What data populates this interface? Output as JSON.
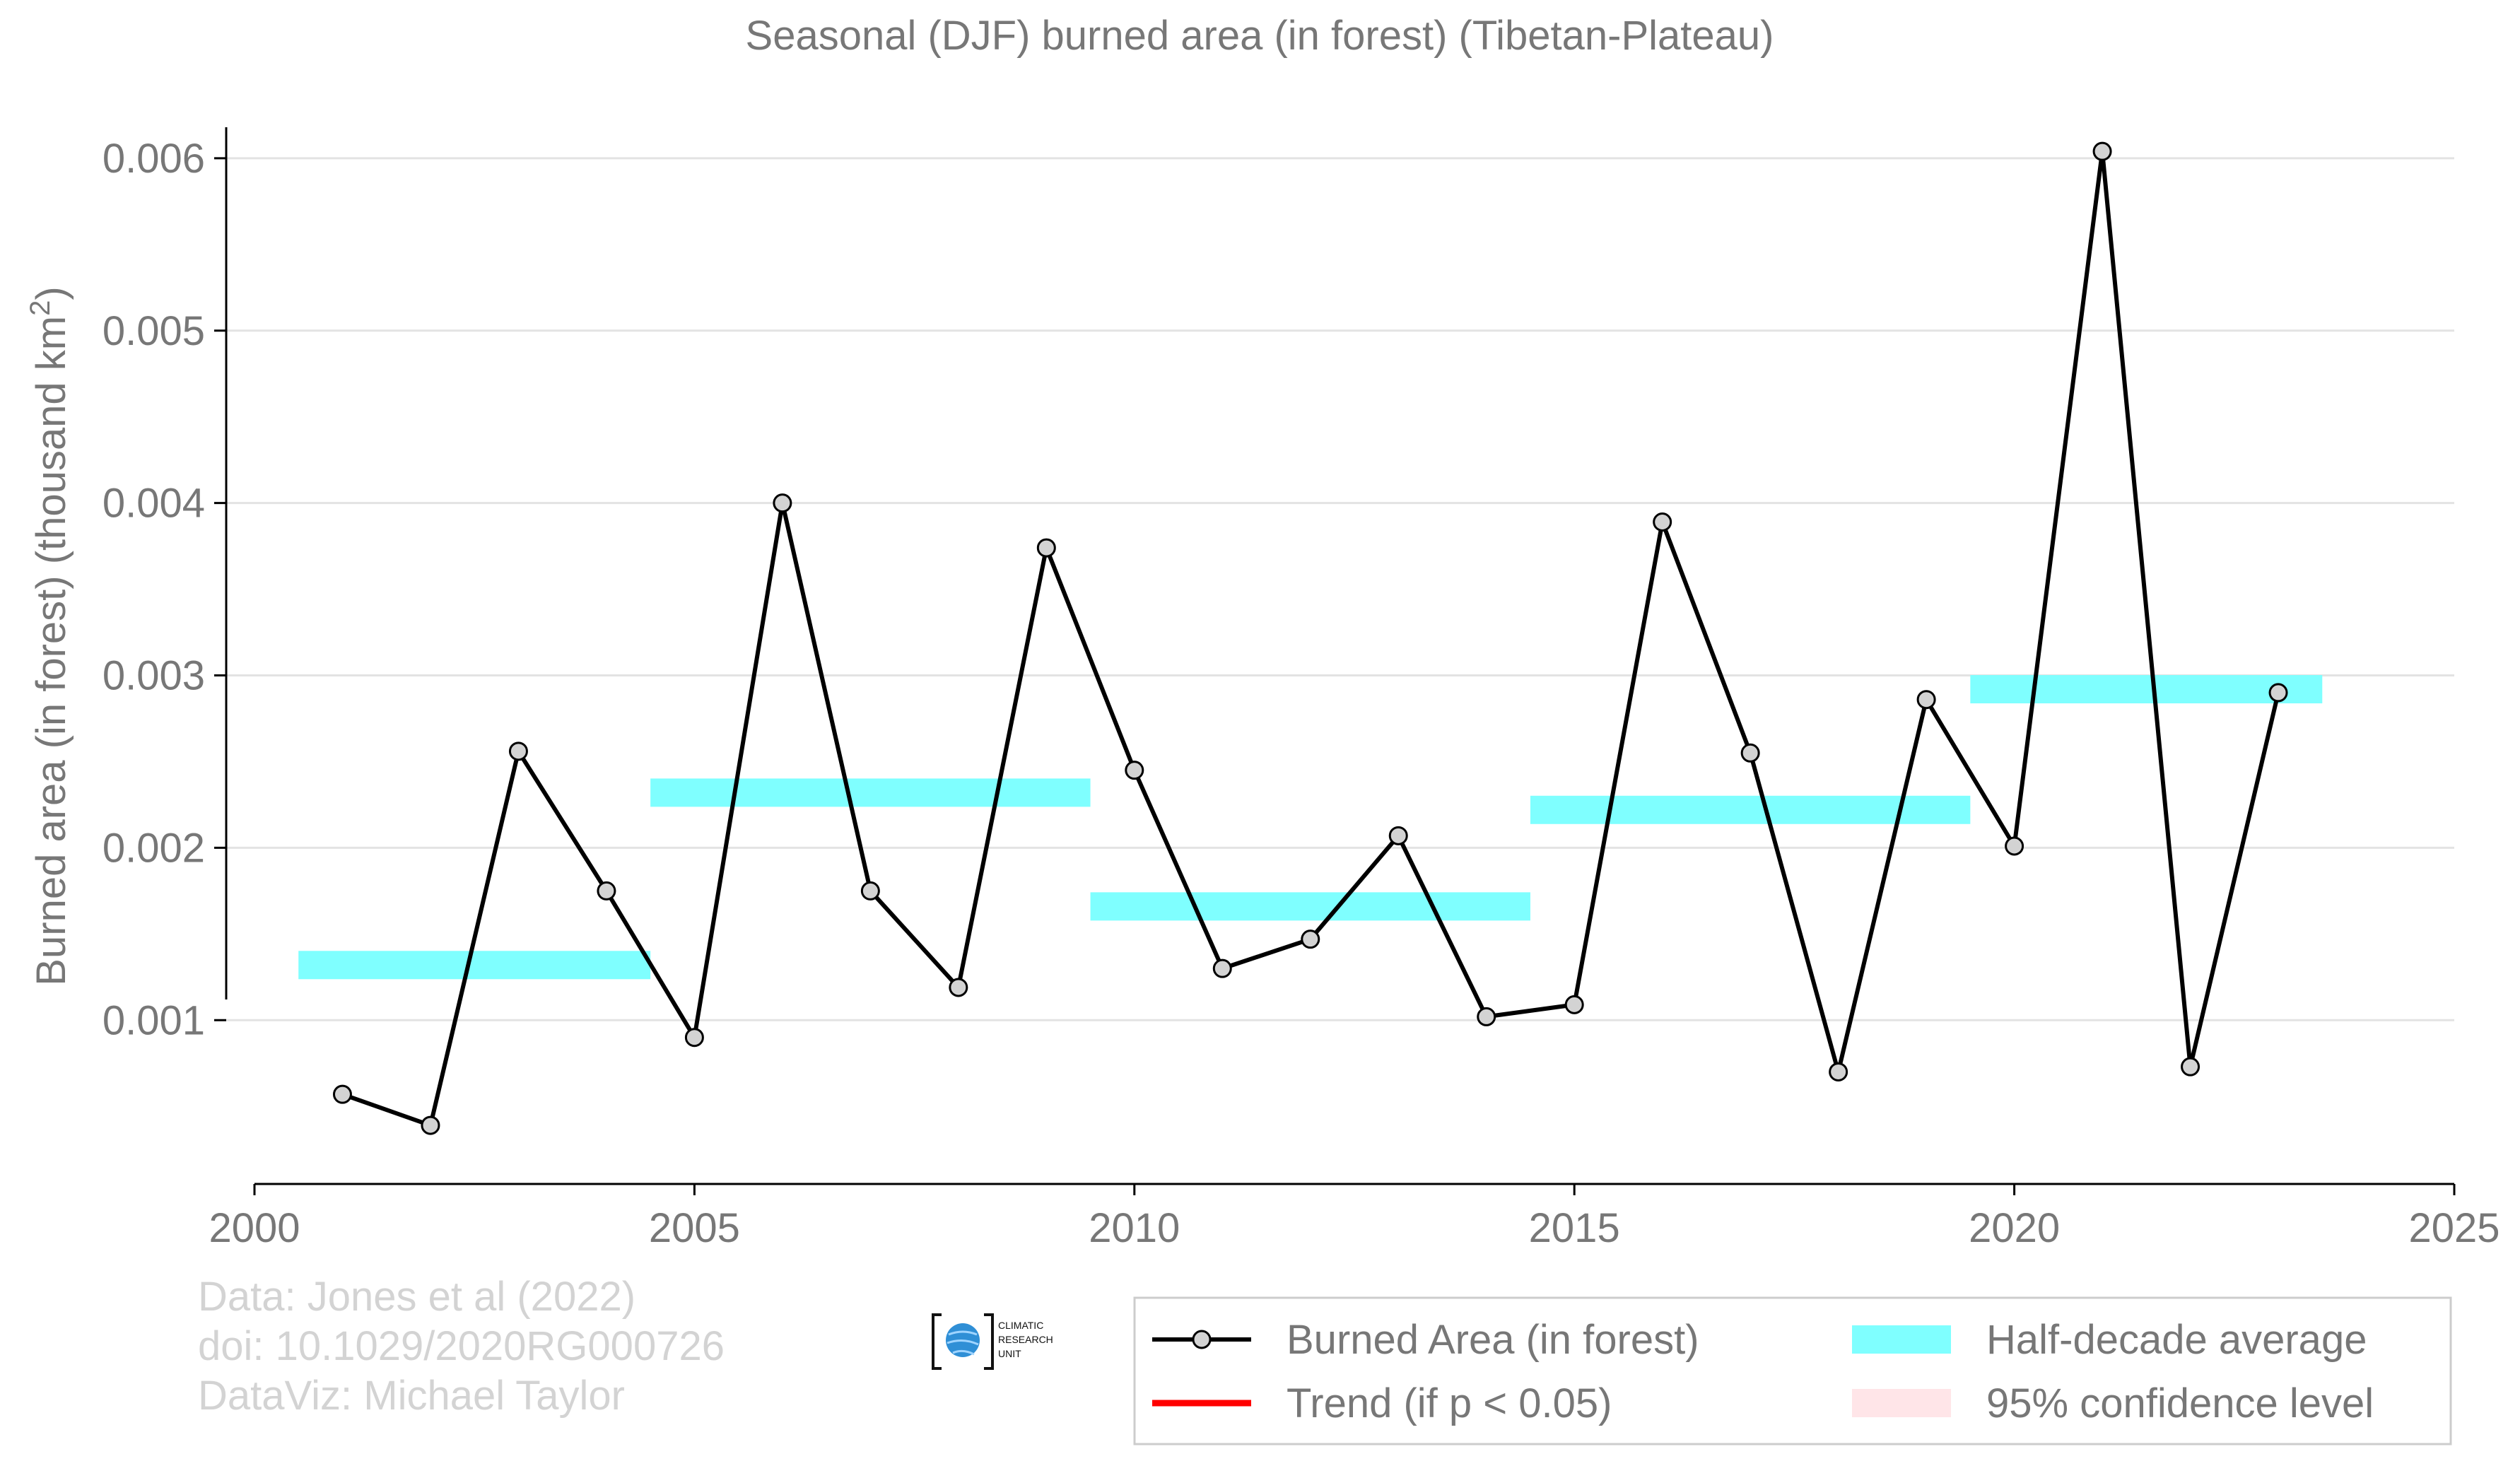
{
  "chart_data": {
    "type": "line",
    "title": "Seasonal (DJF) burned area (in forest) (Tibetan-Plateau)",
    "ylabel": "Burned area (in forest) (thousand km",
    "ylabel_superscript": "2",
    "ylabel_suffix": ")",
    "xlim": [
      2000,
      2025
    ],
    "ylim": [
      5e-05,
      0.00618
    ],
    "x_ticks": [
      2000,
      2005,
      2010,
      2015,
      2020,
      2025
    ],
    "x_tick_labels": [
      "2000",
      "2005",
      "2010",
      "2015",
      "2020",
      "2025"
    ],
    "y_ticks": [
      0.001,
      0.002,
      0.003,
      0.004,
      0.005,
      0.006
    ],
    "y_tick_labels": [
      "0.001",
      "0.002",
      "0.003",
      "0.004",
      "0.005",
      "0.006"
    ],
    "grid": "horizontal",
    "legend_position": "bottom-right",
    "series": [
      {
        "name": "Burned Area (in forest)",
        "color": "#000000",
        "marker_fill": "#d3d3d3",
        "x": [
          2001,
          2002,
          2003,
          2004,
          2005,
          2006,
          2007,
          2008,
          2009,
          2010,
          2011,
          2012,
          2013,
          2014,
          2015,
          2016,
          2017,
          2018,
          2019,
          2020,
          2021,
          2022,
          2023
        ],
        "y": [
          0.00057,
          0.00039,
          0.00256,
          0.00175,
          0.0009,
          0.004,
          0.00175,
          0.00119,
          0.00374,
          0.00245,
          0.0013,
          0.00147,
          0.00207,
          0.00102,
          0.00109,
          0.00389,
          0.00255,
          0.0007,
          0.00286,
          0.00201,
          0.00604,
          0.00073,
          0.0029
        ]
      }
    ],
    "half_decade_averages": {
      "name": "Half-decade average",
      "color": "#7fffff",
      "segments": [
        {
          "x_start": 2000.5,
          "x_end": 2004.5,
          "value": 0.00132
        },
        {
          "x_start": 2004.5,
          "x_end": 2009.5,
          "value": 0.00232
        },
        {
          "x_start": 2009.5,
          "x_end": 2014.5,
          "value": 0.00166
        },
        {
          "x_start": 2014.5,
          "x_end": 2019.5,
          "value": 0.00222
        },
        {
          "x_start": 2019.5,
          "x_end": 2023.5,
          "value": 0.00292
        }
      ]
    },
    "legend": [
      {
        "label": "Burned Area (in forest)",
        "kind": "line-marker",
        "color": "#000000"
      },
      {
        "label": "Trend (if p < 0.05)",
        "kind": "line",
        "color": "#ff0000"
      },
      {
        "label": "Half-decade average",
        "kind": "band",
        "color": "#7fffff"
      },
      {
        "label": "95% confidence level",
        "kind": "band",
        "color": "#ffe5e8"
      }
    ]
  },
  "credits": {
    "line1": "Data: Jones et al (2022)",
    "line2": "doi: 10.1029/2020RG000726",
    "line3": "DataViz: Michael Taylor"
  },
  "logo": {
    "line1": "CLIMATIC",
    "line2": "RESEARCH",
    "line3": "UNIT"
  }
}
